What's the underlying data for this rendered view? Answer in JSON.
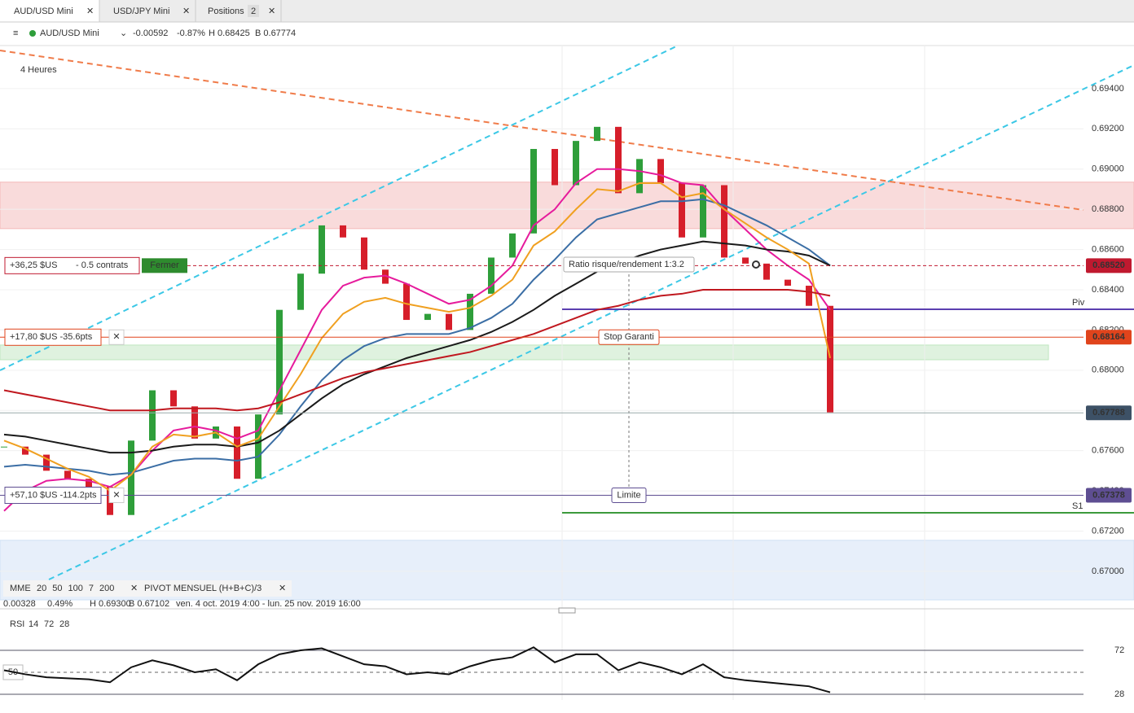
{
  "tabs": [
    {
      "label": "AUD/USD Mini"
    },
    {
      "label": "USD/JPY Mini"
    },
    {
      "label": "Positions",
      "badge": "2"
    }
  ],
  "header": {
    "symbol": "AUD/USD Mini",
    "change": "-0.00592",
    "change_pct": "-0.87%",
    "high": "H 0.68425",
    "low": "B 0.67774"
  },
  "chart_data": [
    {
      "type": "candlestick",
      "timeframe": "4 Heures",
      "up_color": "#2e9e3a",
      "down_color": "#d61e2a",
      "values": [
        0.6762,
        0.6758,
        0.675,
        0.6746,
        0.6742,
        0.6728,
        0.6765,
        0.679,
        0.6782,
        0.6766,
        0.6772,
        0.6746,
        0.6778,
        0.683,
        0.6848,
        0.6872,
        0.6866,
        0.685,
        0.6843,
        0.6825,
        0.6828,
        0.682,
        0.6838,
        0.6856,
        0.6868,
        0.691,
        0.6892,
        0.6914,
        0.6921,
        0.6888,
        0.6905,
        0.6893,
        0.6866,
        0.6892,
        0.6856,
        0.6853,
        0.6845,
        0.6842,
        0.6832,
        0.6779
      ],
      "legend_title": "MME",
      "series": [
        {
          "name": "20",
          "color": "#e61b9c",
          "values": [
            0.673,
            0.674,
            0.6745,
            0.6746,
            0.6745,
            0.6742,
            0.6748,
            0.676,
            0.677,
            0.6772,
            0.677,
            0.6766,
            0.677,
            0.679,
            0.681,
            0.683,
            0.6842,
            0.6846,
            0.6847,
            0.6843,
            0.6838,
            0.6833,
            0.6835,
            0.6842,
            0.6852,
            0.6872,
            0.688,
            0.6893,
            0.69,
            0.69,
            0.6899,
            0.6897,
            0.6893,
            0.6892,
            0.688,
            0.687,
            0.686,
            0.6852,
            0.6845,
            0.683
          ]
        },
        {
          "name": "50",
          "color": "#3b6ea5",
          "values": [
            0.6752,
            0.6753,
            0.6752,
            0.6751,
            0.675,
            0.6748,
            0.6749,
            0.6752,
            0.6755,
            0.6756,
            0.6756,
            0.6755,
            0.6757,
            0.6768,
            0.6782,
            0.6795,
            0.6805,
            0.6812,
            0.6816,
            0.6818,
            0.6818,
            0.6818,
            0.6821,
            0.6826,
            0.6833,
            0.6845,
            0.6855,
            0.6866,
            0.6875,
            0.6878,
            0.6881,
            0.6884,
            0.6884,
            0.6885,
            0.6882,
            0.6877,
            0.6872,
            0.6866,
            0.686,
            0.6852
          ]
        },
        {
          "name": "100",
          "color": "#1a1a1a",
          "values": [
            0.6768,
            0.6767,
            0.6765,
            0.6763,
            0.6761,
            0.6759,
            0.6759,
            0.676,
            0.6762,
            0.6763,
            0.6763,
            0.6762,
            0.6764,
            0.677,
            0.6778,
            0.6786,
            0.6793,
            0.6798,
            0.6802,
            0.6806,
            0.6809,
            0.6812,
            0.6815,
            0.6819,
            0.6824,
            0.683,
            0.6837,
            0.6843,
            0.6849,
            0.6853,
            0.6857,
            0.686,
            0.6862,
            0.6864,
            0.6863,
            0.6862,
            0.686,
            0.6859,
            0.6857,
            0.6852
          ]
        },
        {
          "name": "7",
          "color": "#f0a020",
          "values": [
            0.6765,
            0.6761,
            0.6756,
            0.6751,
            0.6747,
            0.674,
            0.6748,
            0.6762,
            0.6768,
            0.6767,
            0.6769,
            0.6762,
            0.6766,
            0.6782,
            0.6798,
            0.6816,
            0.6828,
            0.6834,
            0.6836,
            0.6833,
            0.6831,
            0.6829,
            0.6831,
            0.6837,
            0.6845,
            0.6862,
            0.6869,
            0.688,
            0.689,
            0.6889,
            0.6893,
            0.6893,
            0.6886,
            0.6888,
            0.688,
            0.6873,
            0.6866,
            0.686,
            0.6853,
            0.6806
          ]
        },
        {
          "name": "200",
          "color": "#c0181f",
          "values": [
            0.679,
            0.6788,
            0.6786,
            0.6784,
            0.6782,
            0.678,
            0.678,
            0.678,
            0.6781,
            0.6781,
            0.6781,
            0.678,
            0.6781,
            0.6784,
            0.6788,
            0.6792,
            0.6796,
            0.6799,
            0.6801,
            0.6803,
            0.6805,
            0.6807,
            0.6809,
            0.6812,
            0.6815,
            0.6818,
            0.6822,
            0.6826,
            0.683,
            0.6832,
            0.6835,
            0.6837,
            0.6838,
            0.684,
            0.684,
            0.684,
            0.684,
            0.684,
            0.6839,
            0.6837
          ]
        }
      ],
      "ylim": [
        0.66858,
        0.6961
      ],
      "yticks": [
        {
          "value": 0.67,
          "label": "0.67000"
        },
        {
          "value": 0.672,
          "label": "0.67200"
        },
        {
          "value": 0.674,
          "label": "0.67400"
        },
        {
          "value": 0.676,
          "label": "0.67600"
        },
        {
          "value": 0.678,
          "label": "0.67800"
        },
        {
          "value": 0.68,
          "label": "0.68000"
        },
        {
          "value": 0.682,
          "label": "0.68200"
        },
        {
          "value": 0.684,
          "label": "0.68400"
        },
        {
          "value": 0.686,
          "label": "0.68600"
        },
        {
          "value": 0.688,
          "label": "0.68800"
        },
        {
          "value": 0.69,
          "label": "0.69000"
        },
        {
          "value": 0.692,
          "label": "0.69200"
        },
        {
          "value": 0.694,
          "label": "0.69400"
        }
      ],
      "grid": true,
      "zones": [
        {
          "from": 0.68704,
          "to": 0.68935,
          "color": "#f4b8b8"
        },
        {
          "from": 0.68052,
          "to": 0.68125,
          "color": "#bfe6bf"
        },
        {
          "from": 0.66858,
          "to": 0.67154,
          "color": "#cfe0f5"
        }
      ],
      "pivots": [
        {
          "label": "Piv",
          "value": 0.68303,
          "color": "#5b3fb0"
        },
        {
          "label": "S1",
          "value": 0.67291,
          "color": "#3c9a3c"
        }
      ],
      "orders": [
        {
          "pnl": "+36,25 $US",
          "detail": "- 0.5 contrats",
          "button": "Fermer",
          "value": 0.6852,
          "label": "0.68520",
          "color": "#c0192f"
        },
        {
          "pnl": "+17,80 $US -35.6pts",
          "tag": "Stop Garanti",
          "value": 0.68164,
          "label": "0.68164",
          "color": "#e0441c"
        },
        {
          "pnl": "+57,10 $US -114.2pts",
          "tag": "Limite",
          "value": 0.67378,
          "label": "0.67378",
          "color": "#5e4e92"
        }
      ],
      "last_price": {
        "value": 0.67788,
        "label": "0.67788",
        "color": "#3d5166"
      },
      "annotation": "Ratio risque/rendement 1:3.2"
    },
    {
      "type": "line",
      "title": "RSI",
      "params": [
        "14",
        "72",
        "28"
      ],
      "color": "#111",
      "values": [
        52,
        48,
        45,
        44,
        43,
        40,
        55,
        62,
        57,
        50,
        53,
        42,
        58,
        68,
        72,
        74,
        66,
        58,
        56,
        48,
        50,
        48,
        56,
        62,
        65,
        75,
        60,
        68,
        68,
        52,
        60,
        55,
        48,
        58,
        45,
        42,
        40,
        38,
        36,
        30
      ],
      "ylim": [
        22.3,
        79.3
      ],
      "yticks": [
        28,
        72
      ],
      "midline": 50
    }
  ],
  "indicator_bar": {
    "pivot": "PIVOT MENSUEL (H+B+C)/3"
  },
  "info_bar": {
    "change": "0.00328",
    "change_pct": "0.49%",
    "high": "H 0.69300",
    "low": "B 0.67102",
    "range": "ven. 4 oct. 2019 4:00 - lun. 25 nov. 2019 16:00"
  }
}
